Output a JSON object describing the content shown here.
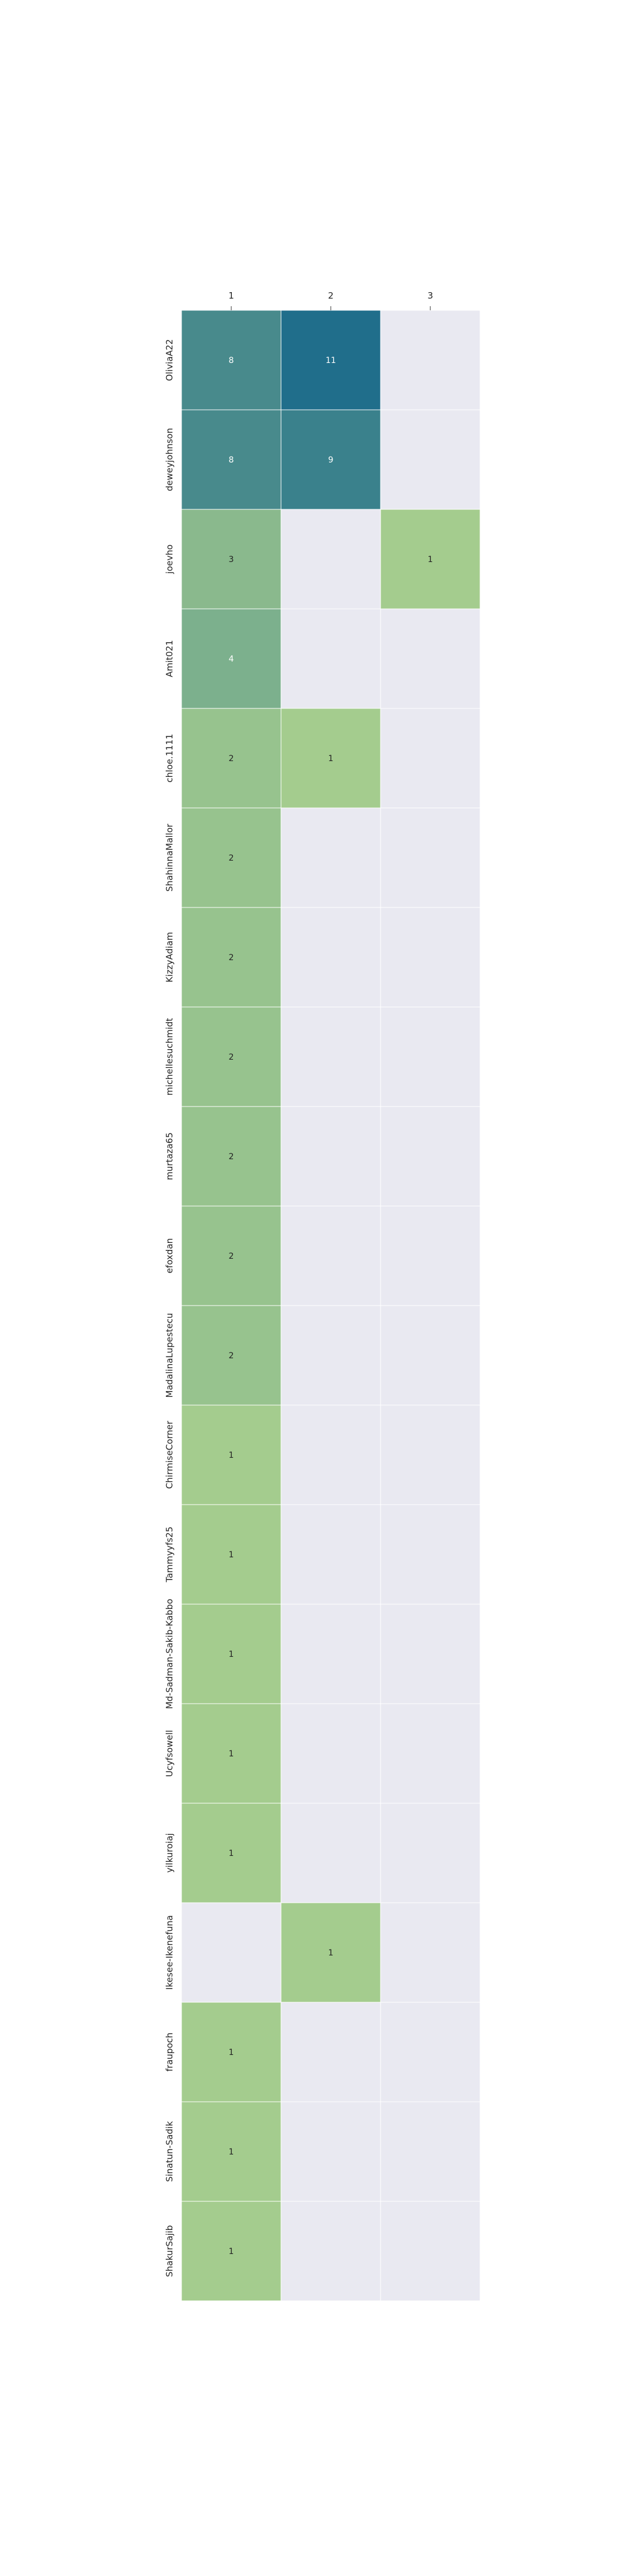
{
  "chart_data": {
    "type": "heatmap",
    "title": "",
    "xlabel": "",
    "ylabel": "",
    "columns": [
      "1",
      "2",
      "3"
    ],
    "rows": [
      "OliviaA22",
      "deweyjohnson",
      "joevho",
      "Amit021",
      "chloe.1111",
      "ShahinnaMallor",
      "KizzyAdiam",
      "michellesuchmidt",
      "murtaza65",
      "efoxdan",
      "MadalinaLupestecu",
      "ChirmiseCorner",
      "Tammyyfs25",
      "Md-Sadman-Sakib-Kabbo",
      "Ucyfsowell",
      "yilkuroiaj",
      "Ikesee-Ikenefuna",
      "fraupoch",
      "Sinatun-Sadik",
      "ShakurSajib"
    ],
    "values": [
      [
        8,
        11,
        null
      ],
      [
        8,
        9,
        null
      ],
      [
        3,
        null,
        1
      ],
      [
        4,
        null,
        null
      ],
      [
        2,
        1,
        null
      ],
      [
        2,
        null,
        null
      ],
      [
        2,
        null,
        null
      ],
      [
        2,
        null,
        null
      ],
      [
        2,
        null,
        null
      ],
      [
        2,
        null,
        null
      ],
      [
        2,
        null,
        null
      ],
      [
        1,
        null,
        null
      ],
      [
        1,
        null,
        null
      ],
      [
        1,
        null,
        null
      ],
      [
        1,
        null,
        null
      ],
      [
        1,
        null,
        null
      ],
      [
        null,
        1,
        null
      ],
      [
        1,
        null,
        null
      ],
      [
        1,
        null,
        null
      ],
      [
        1,
        null,
        null
      ]
    ],
    "color_scale": {
      "min": 1,
      "max": 11,
      "low_color": "#a4cc8e",
      "high_color": "#206e8b",
      "empty_color": "#e9e9f1"
    },
    "grid": false,
    "legend": "none",
    "x_ticks_position": "top"
  }
}
